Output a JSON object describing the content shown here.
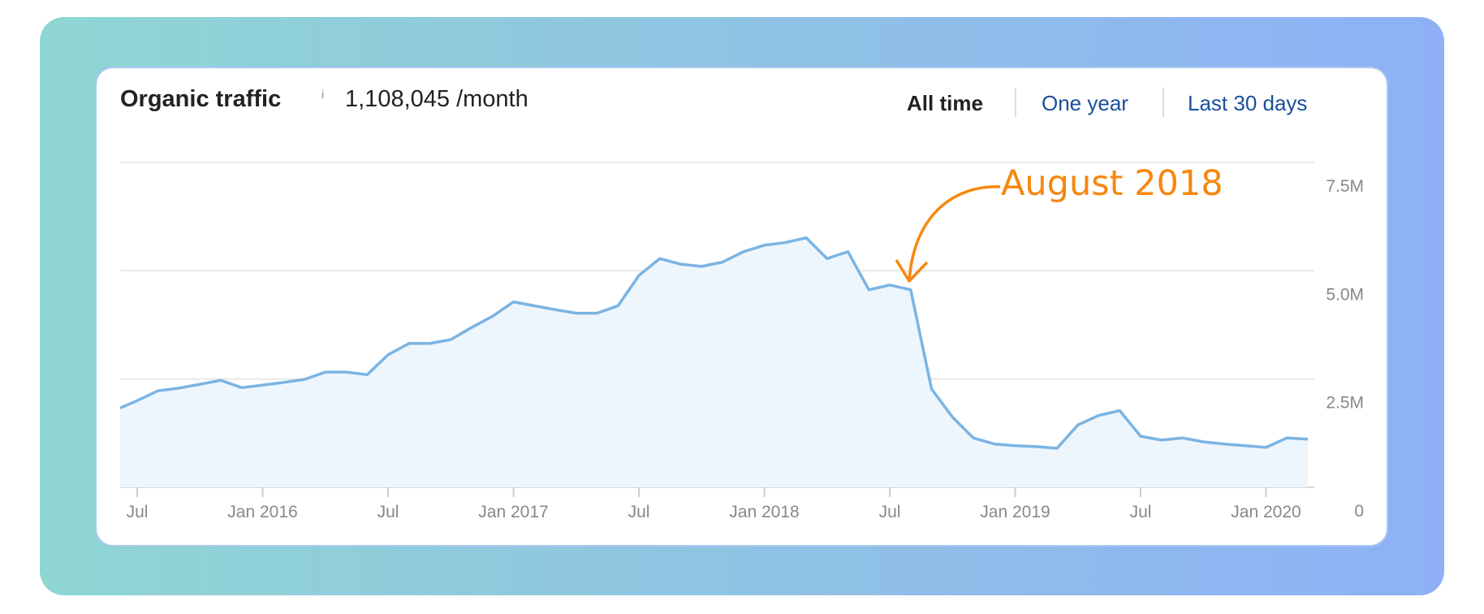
{
  "header": {
    "title": "Organic traffic",
    "info_icon": "i",
    "total": "1,108,045 /month"
  },
  "tabs": [
    {
      "label": "All time",
      "active": true
    },
    {
      "label": "One year",
      "active": false
    },
    {
      "label": "Last 30 days",
      "active": false
    }
  ],
  "colors": {
    "line": "#7ab4e3",
    "fill": "#eef6fd",
    "annotation": "#f7870f",
    "link": "#1a4f9c"
  },
  "chart_data": {
    "type": "area",
    "xlabel": "",
    "ylabel": "",
    "ylim": [
      0,
      7.5
    ],
    "y_unit": "M",
    "y_ticks": [
      {
        "value": 7.5,
        "label": "7.5M"
      },
      {
        "value": 5.0,
        "label": "5.0M"
      },
      {
        "value": 2.5,
        "label": "2.5M"
      },
      {
        "value": 0,
        "label": "0"
      }
    ],
    "x_ticks": [
      {
        "date": "2015-07",
        "label": "Jul"
      },
      {
        "date": "2016-01",
        "label": "Jan 2016"
      },
      {
        "date": "2016-07",
        "label": "Jul"
      },
      {
        "date": "2017-01",
        "label": "Jan 2017"
      },
      {
        "date": "2017-07",
        "label": "Jul"
      },
      {
        "date": "2018-01",
        "label": "Jan 2018"
      },
      {
        "date": "2018-07",
        "label": "Jul"
      },
      {
        "date": "2019-01",
        "label": "Jan 2019"
      },
      {
        "date": "2019-07",
        "label": "Jul"
      },
      {
        "date": "2020-01",
        "label": "Jan 2020"
      }
    ],
    "grid": true,
    "x": [
      "2015-06",
      "2015-07",
      "2015-08",
      "2015-09",
      "2015-10",
      "2015-11",
      "2015-12",
      "2016-01",
      "2016-02",
      "2016-03",
      "2016-04",
      "2016-05",
      "2016-06",
      "2016-07",
      "2016-08",
      "2016-09",
      "2016-10",
      "2016-11",
      "2016-12",
      "2017-01",
      "2017-02",
      "2017-03",
      "2017-04",
      "2017-05",
      "2017-06",
      "2017-07",
      "2017-08",
      "2017-09",
      "2017-10",
      "2017-11",
      "2017-12",
      "2018-01",
      "2018-02",
      "2018-03",
      "2018-04",
      "2018-05",
      "2018-06",
      "2018-07",
      "2018-08",
      "2018-09",
      "2018-10",
      "2018-11",
      "2018-12",
      "2019-01",
      "2019-02",
      "2019-03",
      "2019-04",
      "2019-05",
      "2019-06",
      "2019-07",
      "2019-08",
      "2019-09",
      "2019-10",
      "2019-11",
      "2019-12",
      "2020-01",
      "2020-02",
      "2020-03"
    ],
    "values": [
      1.83,
      2.0,
      2.23,
      2.29,
      2.38,
      2.47,
      2.3,
      2.36,
      2.42,
      2.49,
      2.66,
      2.66,
      2.6,
      3.06,
      3.32,
      3.32,
      3.41,
      3.69,
      3.95,
      4.28,
      4.19,
      4.1,
      4.02,
      4.02,
      4.19,
      4.89,
      5.28,
      5.15,
      5.1,
      5.2,
      5.44,
      5.59,
      5.65,
      5.76,
      5.28,
      5.44,
      4.56,
      4.67,
      4.56,
      2.27,
      1.62,
      1.14,
      1.0,
      0.96,
      0.94,
      0.9,
      1.44,
      1.66,
      1.77,
      1.18,
      1.09,
      1.14,
      1.05,
      1.0,
      0.96,
      0.92,
      1.14,
      1.11
    ],
    "annotation": {
      "label": "August 2018",
      "date": "2018-08"
    }
  }
}
